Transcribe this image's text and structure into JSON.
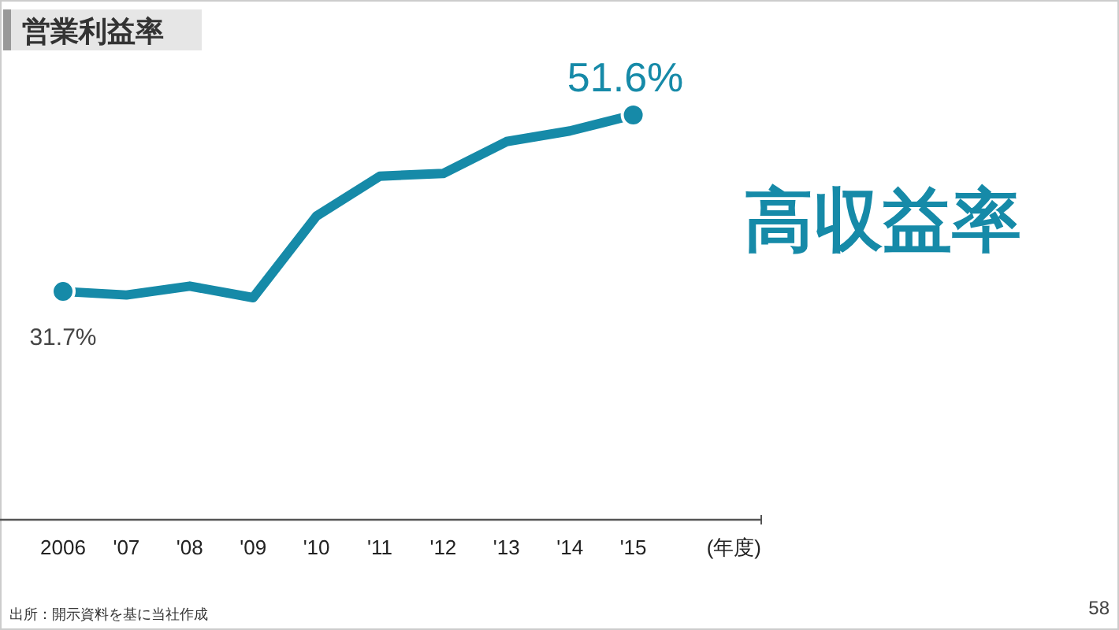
{
  "chart_data": {
    "type": "line",
    "title": "営業利益率",
    "subtitle": "高収益率",
    "xlabel": "(年度)",
    "categories": [
      "2006",
      "'07",
      "'08",
      "'09",
      "'10",
      "'11",
      "'12",
      "'13",
      "'14",
      "'15"
    ],
    "series": [
      {
        "color": "#168aa8",
        "values": [
          31.7,
          31.3,
          32.3,
          31.0,
          40.2,
          44.7,
          45.0,
          48.6,
          49.8,
          51.6
        ],
        "value_labels": [
          "31.7%",
          null,
          null,
          null,
          null,
          null,
          null,
          null,
          null,
          "51.6%"
        ]
      }
    ],
    "line_style": "solid",
    "annotations": [
      "出所：開示資料を基に当社作成",
      "58"
    ]
  }
}
